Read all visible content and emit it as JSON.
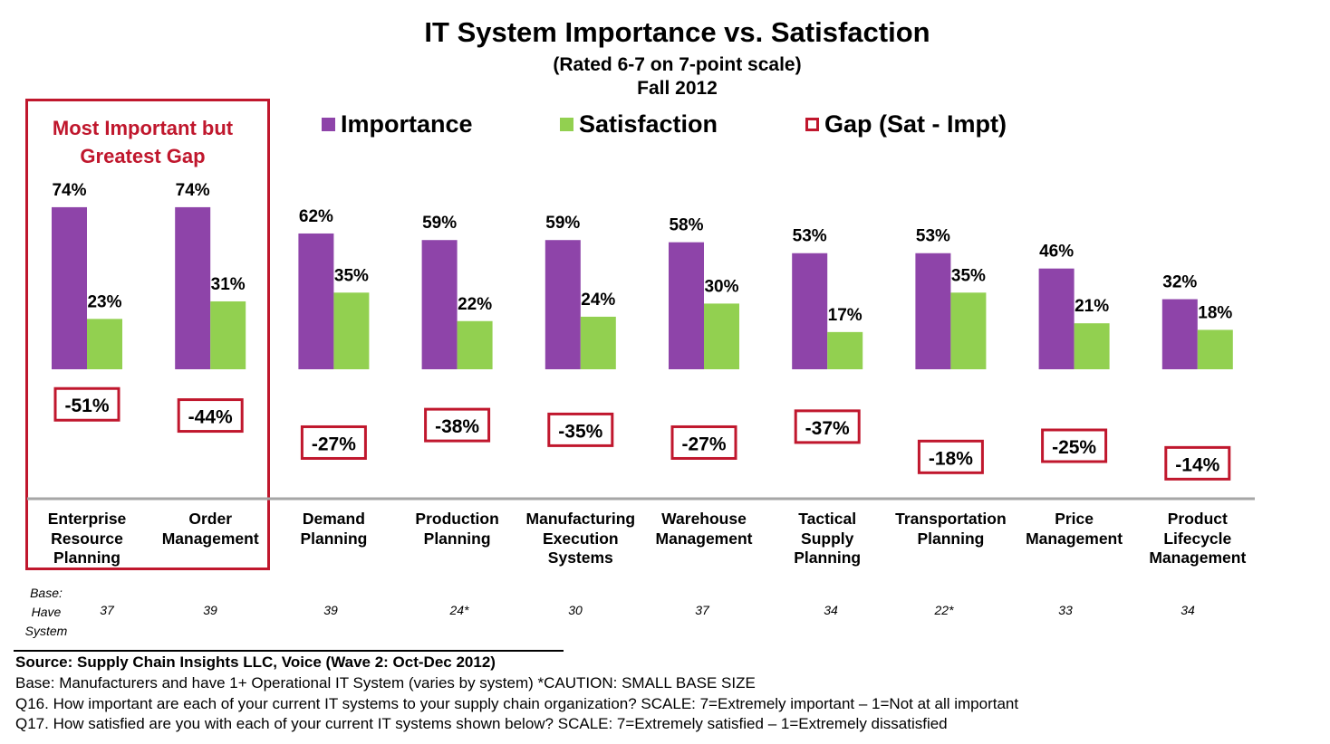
{
  "chart_data": {
    "type": "bar",
    "title": "IT System Importance vs. Satisfaction",
    "subtitle": [
      "(Rated 6-7 on 7-point scale)",
      "Fall 2012"
    ],
    "legend": [
      {
        "name": "Importance",
        "color": "#8e44a9"
      },
      {
        "name": "Satisfaction",
        "color": "#92d050"
      },
      {
        "name": "Gap (Sat - Impt)",
        "color": "#c0172d"
      }
    ],
    "categories": [
      "Enterprise Resource Planning",
      "Order Management",
      "Demand Planning",
      "Production Planning",
      "Manufacturing Execution Systems",
      "Warehouse Management",
      "Tactical Supply Planning",
      "Transportation Planning",
      "Price Management",
      "Product Lifecycle Management"
    ],
    "category_lines": [
      [
        "Enterprise",
        "Resource",
        "Planning"
      ],
      [
        "Order",
        "Management"
      ],
      [
        "Demand",
        "Planning"
      ],
      [
        "Production",
        "Planning"
      ],
      [
        "Manufacturing",
        "Execution",
        "Systems"
      ],
      [
        "Warehouse",
        "Management"
      ],
      [
        "Tactical",
        "Supply",
        "Planning"
      ],
      [
        "Transportation",
        "Planning"
      ],
      [
        "Price",
        "Management"
      ],
      [
        "Product",
        "Lifecycle",
        "Management"
      ]
    ],
    "series": [
      {
        "name": "Importance",
        "values": [
          74,
          74,
          62,
          59,
          59,
          58,
          53,
          53,
          46,
          32
        ],
        "labels": [
          "74%",
          "74%",
          "62%",
          "59%",
          "59%",
          "58%",
          "53%",
          "53%",
          "46%",
          "32%"
        ]
      },
      {
        "name": "Satisfaction",
        "values": [
          23,
          31,
          35,
          22,
          24,
          30,
          17,
          35,
          21,
          18
        ],
        "labels": [
          "23%",
          "31%",
          "35%",
          "22%",
          "24%",
          "30%",
          "17%",
          "35%",
          "21%",
          "18%"
        ]
      },
      {
        "name": "Gap (Sat - Impt)",
        "values": [
          -51,
          -44,
          -27,
          -38,
          -35,
          -27,
          -37,
          -18,
          -25,
          -14
        ],
        "labels": [
          "-51%",
          "-44%",
          "-27%",
          "-38%",
          "-35%",
          "-27%",
          "-37%",
          "-18%",
          "-25%",
          "-14%"
        ]
      }
    ],
    "ylim": [
      -55,
      80
    ],
    "grid": false,
    "annotation": [
      "Most Important but",
      "Greatest Gap"
    ],
    "base_label": [
      "Base:",
      "Have",
      "System"
    ],
    "base_values": [
      "37",
      "39",
      "39",
      "24*",
      "30",
      "37",
      "34",
      "22*",
      "33",
      "34"
    ]
  },
  "footnotes": {
    "source": "Source:  Supply Chain Insights LLC, Voice (Wave 2: Oct-Dec 2012)",
    "base": "Base:  Manufacturers and have 1+ Operational IT System (varies by system) *CAUTION:  SMALL BASE SIZE",
    "q16": "Q16. How important are each of your current IT systems to your supply chain organization? SCALE:  7=Extremely important – 1=Not at all important",
    "q17": "Q17. How satisfied are you with each of your current IT systems shown below? SCALE:  7=Extremely satisfied – 1=Extremely dissatisfied"
  },
  "colors": {
    "importance": "#8e44a9",
    "satisfaction": "#92d050",
    "gap": "#c0172d",
    "axis": "#a6a6a6"
  }
}
